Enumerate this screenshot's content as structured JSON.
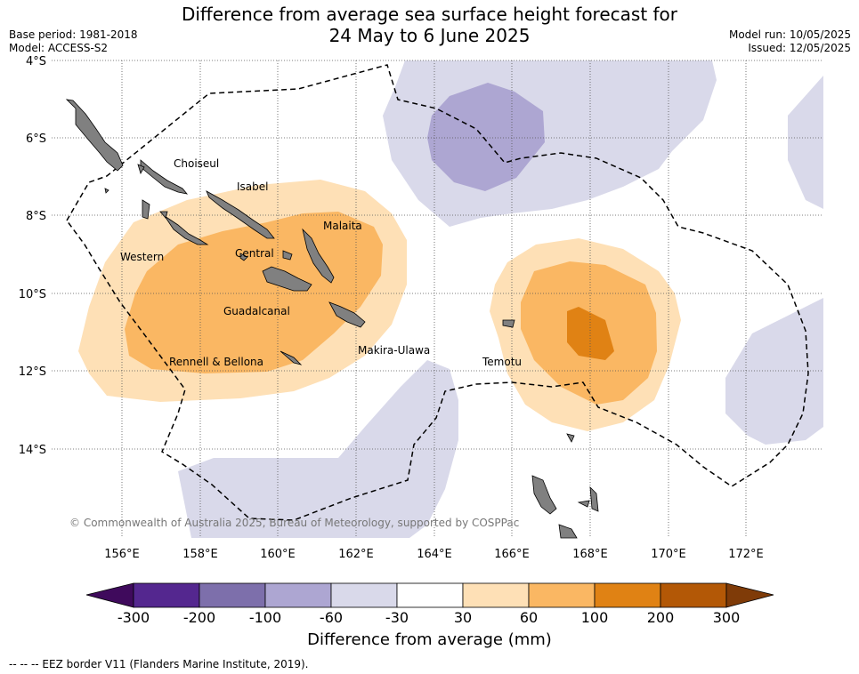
{
  "title_line1": "Difference from average sea surface height forecast for",
  "title_line2": "24 May to 6 June 2025",
  "base_period": "Base period: 1981-2018",
  "model": "Model: ACCESS-S2",
  "model_run": "Model run: 10/05/2025",
  "issued": "Issued: 12/05/2025",
  "lat_labels": [
    "4°S",
    "6°S",
    "8°S",
    "10°S",
    "12°S",
    "14°S"
  ],
  "lon_labels": [
    "156°E",
    "158°E",
    "160°E",
    "162°E",
    "164°E",
    "166°E",
    "168°E",
    "170°E",
    "172°E"
  ],
  "regions": {
    "choiseul": "Choiseul",
    "isabel": "Isabel",
    "malaita": "Malaita",
    "western": "Western",
    "central": "Central",
    "guadalcanal": "Guadalcanal",
    "rennell": "Rennell & Bellona",
    "makira": "Makira-Ulawa",
    "temotu": "Temotu"
  },
  "copyright": "© Commonwealth of Australia 2025, Bureau of Meteorology, supported by COSPPac",
  "colorbar": {
    "ticks": [
      "-300",
      "-200",
      "-100",
      "-60",
      "-30",
      "30",
      "60",
      "100",
      "200",
      "300"
    ],
    "label": "Difference from average (mm)",
    "colors": [
      "#3f0a5c",
      "#54278f",
      "#7d6fab",
      "#ada6d2",
      "#d9d9ea",
      "#ffffff",
      "#fee0b6",
      "#fab763",
      "#e08214",
      "#b35806",
      "#7f3b08"
    ]
  },
  "footnote": "--  --  -- EEZ border V11 (Flanders Marine Institute, 2019)."
}
